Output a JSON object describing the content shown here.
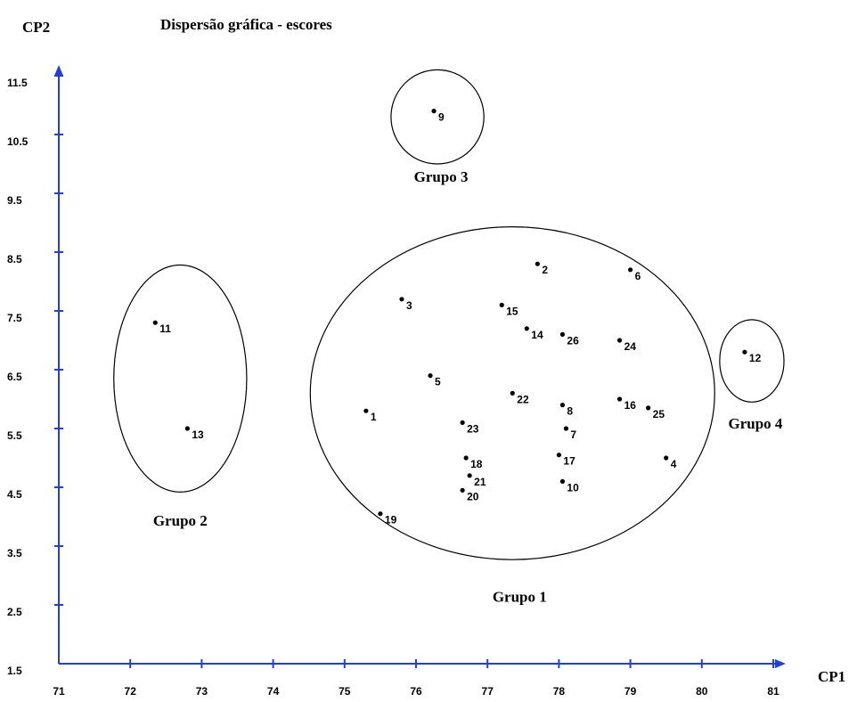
{
  "chart_data": {
    "type": "scatter",
    "title": "Dispersão gráfica - escores",
    "xlabel": "CP1",
    "ylabel": "CP2",
    "xlim": [
      71,
      81
    ],
    "ylim": [
      1.5,
      11.5
    ],
    "x_ticks": [
      71,
      72,
      73,
      74,
      75,
      76,
      77,
      78,
      79,
      80,
      81
    ],
    "y_ticks": [
      1.5,
      2.5,
      3.5,
      4.5,
      5.5,
      6.5,
      7.5,
      8.5,
      9.5,
      10.5,
      11.5
    ],
    "x_tick_labels": [
      "71",
      "72",
      "73",
      "74",
      "75",
      "76",
      "77",
      "78",
      "79",
      "80",
      "81"
    ],
    "y_tick_labels": [
      "1.5",
      "2.5",
      "3.5",
      "4.5",
      "5.5",
      "6.5",
      "7.5",
      "8.5",
      "9.5",
      "10.5",
      "11.5"
    ],
    "axis_color": "#1f3fe0",
    "grid": false,
    "points": [
      {
        "label": "1",
        "x": 75.3,
        "y": 5.8
      },
      {
        "label": "2",
        "x": 77.7,
        "y": 8.3
      },
      {
        "label": "3",
        "x": 75.8,
        "y": 7.7
      },
      {
        "label": "4",
        "x": 79.5,
        "y": 5.0
      },
      {
        "label": "5",
        "x": 76.2,
        "y": 6.4
      },
      {
        "label": "6",
        "x": 79.0,
        "y": 8.2
      },
      {
        "label": "7",
        "x": 78.1,
        "y": 5.5
      },
      {
        "label": "8",
        "x": 78.05,
        "y": 5.9
      },
      {
        "label": "9",
        "x": 76.25,
        "y": 10.9
      },
      {
        "label": "10",
        "x": 78.05,
        "y": 4.6
      },
      {
        "label": "11",
        "x": 72.35,
        "y": 7.3
      },
      {
        "label": "12",
        "x": 80.6,
        "y": 6.8
      },
      {
        "label": "13",
        "x": 72.8,
        "y": 5.5
      },
      {
        "label": "14",
        "x": 77.55,
        "y": 7.2
      },
      {
        "label": "15",
        "x": 77.2,
        "y": 7.6
      },
      {
        "label": "16",
        "x": 78.85,
        "y": 6.0
      },
      {
        "label": "17",
        "x": 78.0,
        "y": 5.05
      },
      {
        "label": "18",
        "x": 76.7,
        "y": 5.0
      },
      {
        "label": "19",
        "x": 75.5,
        "y": 4.05
      },
      {
        "label": "20",
        "x": 76.65,
        "y": 4.45
      },
      {
        "label": "21",
        "x": 76.75,
        "y": 4.7
      },
      {
        "label": "22",
        "x": 77.35,
        "y": 6.1
      },
      {
        "label": "23",
        "x": 76.65,
        "y": 5.6
      },
      {
        "label": "24",
        "x": 78.85,
        "y": 7.0
      },
      {
        "label": "25",
        "x": 79.25,
        "y": 5.85
      },
      {
        "label": "26",
        "x": 78.05,
        "y": 7.1
      }
    ],
    "groups": [
      {
        "label": "Grupo 1",
        "cx": 77.35,
        "cy": 6.1,
        "rx": 2.83,
        "ry": 2.83,
        "label_x": 77.45,
        "label_y": 2.55
      },
      {
        "label": "Grupo 2",
        "cx": 72.7,
        "cy": 6.35,
        "rx": 0.93,
        "ry": 1.93,
        "label_x": 72.7,
        "label_y": 3.85
      },
      {
        "label": "Grupo 3",
        "cx": 76.3,
        "cy": 10.8,
        "rx": 0.65,
        "ry": 0.8,
        "label_x": 76.35,
        "label_y": 9.7
      },
      {
        "label": "Grupo 4",
        "cx": 80.7,
        "cy": 6.65,
        "rx": 0.45,
        "ry": 0.7,
        "label_x": 80.75,
        "label_y": 5.5
      }
    ]
  }
}
